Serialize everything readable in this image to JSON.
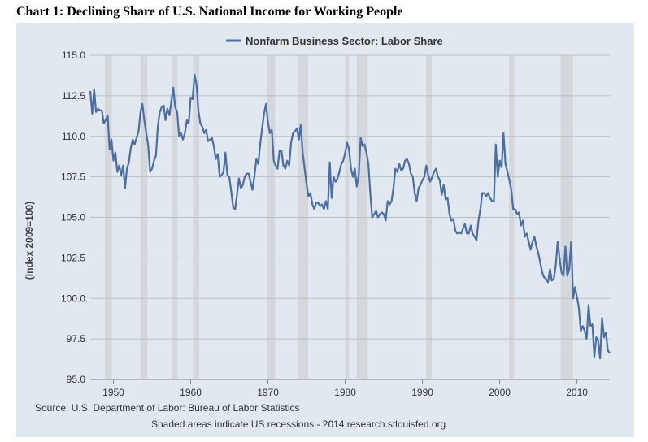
{
  "page": {
    "heading": "Chart 1: Declining Share of U.S. National Income for Working People"
  },
  "chart_data": {
    "type": "line",
    "title": "",
    "legend": {
      "position": "top-center",
      "entries": [
        "Nonfarm Business Sector: Labor Share"
      ]
    },
    "xlabel": "",
    "ylabel": "(Index 2009=100)",
    "xlim": [
      1947.0,
      2014.25
    ],
    "ylim": [
      95.0,
      115.0
    ],
    "x_ticks": [
      "1950",
      "1960",
      "1970",
      "1980",
      "1990",
      "2000",
      "2010"
    ],
    "y_ticks": [
      "115.0",
      "112.5",
      "110.0",
      "107.5",
      "105.0",
      "102.5",
      "100.0",
      "97.5",
      "95.0"
    ],
    "grid": true,
    "source": "Source: U.S. Department of Labor: Bureau of Labor Statistics",
    "note": "Shaded areas indicate US recessions - 2014 research.stlouisfed.org",
    "recessions": [
      [
        1948.9,
        1949.8
      ],
      [
        1953.5,
        1954.4
      ],
      [
        1957.6,
        1958.3
      ],
      [
        1960.3,
        1961.1
      ],
      [
        1969.9,
        1970.9
      ],
      [
        1973.9,
        1975.2
      ],
      [
        1980.0,
        1980.5
      ],
      [
        1981.5,
        1982.9
      ],
      [
        1990.5,
        1991.2
      ],
      [
        2001.2,
        2001.9
      ],
      [
        2007.9,
        2009.5
      ]
    ],
    "series": [
      {
        "name": "Nonfarm Business Sector: Labor Share",
        "color": "#4b6fa3",
        "points": [
          [
            1947.0,
            112.8
          ],
          [
            1947.25,
            111.4
          ],
          [
            1947.5,
            112.9
          ],
          [
            1947.75,
            111.5
          ],
          [
            1948.0,
            111.7
          ],
          [
            1948.25,
            111.6
          ],
          [
            1948.5,
            111.6
          ],
          [
            1948.75,
            110.8
          ],
          [
            1949.0,
            111.0
          ],
          [
            1949.25,
            111.3
          ],
          [
            1949.5,
            109.2
          ],
          [
            1949.75,
            109.8
          ],
          [
            1950.0,
            108.5
          ],
          [
            1950.25,
            109.0
          ],
          [
            1950.5,
            107.8
          ],
          [
            1950.75,
            108.2
          ],
          [
            1951.0,
            107.6
          ],
          [
            1951.25,
            108.2
          ],
          [
            1951.5,
            106.8
          ],
          [
            1951.75,
            108.0
          ],
          [
            1952.0,
            108.4
          ],
          [
            1952.25,
            109.3
          ],
          [
            1952.5,
            109.8
          ],
          [
            1952.75,
            109.5
          ],
          [
            1953.0,
            109.9
          ],
          [
            1953.25,
            110.3
          ],
          [
            1953.5,
            111.5
          ],
          [
            1953.75,
            112.0
          ],
          [
            1954.0,
            111.0
          ],
          [
            1954.25,
            110.2
          ],
          [
            1954.5,
            109.4
          ],
          [
            1954.75,
            107.8
          ],
          [
            1955.0,
            108.0
          ],
          [
            1955.25,
            108.5
          ],
          [
            1955.5,
            108.8
          ],
          [
            1955.75,
            110.6
          ],
          [
            1956.0,
            111.5
          ],
          [
            1956.25,
            111.8
          ],
          [
            1956.5,
            111.9
          ],
          [
            1956.75,
            111.0
          ],
          [
            1957.0,
            111.7
          ],
          [
            1957.25,
            111.3
          ],
          [
            1957.5,
            112.2
          ],
          [
            1957.75,
            113.0
          ],
          [
            1958.0,
            111.8
          ],
          [
            1958.25,
            111.5
          ],
          [
            1958.5,
            110.0
          ],
          [
            1958.75,
            110.2
          ],
          [
            1959.0,
            109.8
          ],
          [
            1959.25,
            110.2
          ],
          [
            1959.5,
            111.0
          ],
          [
            1959.75,
            110.8
          ],
          [
            1960.0,
            112.4
          ],
          [
            1960.25,
            112.3
          ],
          [
            1960.5,
            113.8
          ],
          [
            1960.75,
            113.2
          ],
          [
            1961.0,
            111.6
          ],
          [
            1961.25,
            110.8
          ],
          [
            1961.5,
            110.6
          ],
          [
            1961.75,
            110.2
          ],
          [
            1962.0,
            110.4
          ],
          [
            1962.25,
            109.7
          ],
          [
            1962.5,
            109.8
          ],
          [
            1962.75,
            109.9
          ],
          [
            1963.0,
            109.4
          ],
          [
            1963.25,
            108.6
          ],
          [
            1963.5,
            108.9
          ],
          [
            1963.75,
            107.5
          ],
          [
            1964.0,
            107.6
          ],
          [
            1964.25,
            107.8
          ],
          [
            1964.5,
            109.0
          ],
          [
            1964.75,
            107.6
          ],
          [
            1965.0,
            107.5
          ],
          [
            1965.25,
            106.6
          ],
          [
            1965.5,
            105.6
          ],
          [
            1965.75,
            105.5
          ],
          [
            1966.0,
            106.4
          ],
          [
            1966.25,
            107.4
          ],
          [
            1966.5,
            106.8
          ],
          [
            1966.75,
            107.0
          ],
          [
            1967.0,
            107.5
          ],
          [
            1967.25,
            107.7
          ],
          [
            1967.5,
            107.7
          ],
          [
            1967.75,
            107.2
          ],
          [
            1968.0,
            106.7
          ],
          [
            1968.25,
            107.5
          ],
          [
            1968.5,
            108.6
          ],
          [
            1968.75,
            108.3
          ],
          [
            1969.0,
            109.5
          ],
          [
            1969.25,
            110.5
          ],
          [
            1969.5,
            111.4
          ],
          [
            1969.75,
            112.0
          ],
          [
            1970.0,
            110.9
          ],
          [
            1970.25,
            110.2
          ],
          [
            1970.5,
            110.4
          ],
          [
            1970.75,
            108.5
          ],
          [
            1971.0,
            108.2
          ],
          [
            1971.25,
            108.0
          ],
          [
            1971.5,
            109.1
          ],
          [
            1971.75,
            109.1
          ],
          [
            1972.0,
            108.2
          ],
          [
            1972.25,
            108.0
          ],
          [
            1972.5,
            108.5
          ],
          [
            1972.75,
            108.2
          ],
          [
            1973.0,
            109.6
          ],
          [
            1973.25,
            110.2
          ],
          [
            1973.5,
            110.3
          ],
          [
            1973.75,
            110.5
          ],
          [
            1974.0,
            109.8
          ],
          [
            1974.25,
            110.7
          ],
          [
            1974.5,
            109.0
          ],
          [
            1974.75,
            108.0
          ],
          [
            1975.0,
            107.0
          ],
          [
            1975.25,
            106.3
          ],
          [
            1975.5,
            106.5
          ],
          [
            1975.75,
            105.8
          ],
          [
            1976.0,
            105.5
          ],
          [
            1976.25,
            105.9
          ],
          [
            1976.5,
            105.9
          ],
          [
            1976.75,
            105.7
          ],
          [
            1977.0,
            105.8
          ],
          [
            1977.25,
            105.5
          ],
          [
            1977.5,
            106.0
          ],
          [
            1977.75,
            105.5
          ],
          [
            1978.0,
            108.4
          ],
          [
            1978.25,
            106.2
          ],
          [
            1978.5,
            107.5
          ],
          [
            1978.75,
            107.2
          ],
          [
            1979.0,
            107.4
          ],
          [
            1979.25,
            107.8
          ],
          [
            1979.5,
            108.3
          ],
          [
            1979.75,
            108.5
          ],
          [
            1980.0,
            109.0
          ],
          [
            1980.25,
            109.6
          ],
          [
            1980.5,
            109.2
          ],
          [
            1980.75,
            108.0
          ],
          [
            1981.0,
            107.5
          ],
          [
            1981.25,
            108.0
          ],
          [
            1981.5,
            106.9
          ],
          [
            1981.75,
            107.6
          ],
          [
            1982.0,
            109.9
          ],
          [
            1982.25,
            109.4
          ],
          [
            1982.5,
            109.5
          ],
          [
            1982.75,
            109.0
          ],
          [
            1983.0,
            108.3
          ],
          [
            1983.25,
            106.5
          ],
          [
            1983.5,
            105.0
          ],
          [
            1983.75,
            105.2
          ],
          [
            1984.0,
            105.4
          ],
          [
            1984.25,
            105.0
          ],
          [
            1984.5,
            105.2
          ],
          [
            1984.75,
            105.3
          ],
          [
            1985.0,
            105.2
          ],
          [
            1985.25,
            104.8
          ],
          [
            1985.5,
            106.0
          ],
          [
            1985.75,
            105.8
          ],
          [
            1986.0,
            106.0
          ],
          [
            1986.25,
            106.8
          ],
          [
            1986.5,
            108.0
          ],
          [
            1986.75,
            107.8
          ],
          [
            1987.0,
            108.3
          ],
          [
            1987.25,
            107.9
          ],
          [
            1987.5,
            108.0
          ],
          [
            1987.75,
            108.5
          ],
          [
            1988.0,
            108.6
          ],
          [
            1988.25,
            108.3
          ],
          [
            1988.5,
            107.7
          ],
          [
            1988.75,
            107.5
          ],
          [
            1989.0,
            106.5
          ],
          [
            1989.25,
            106.0
          ],
          [
            1989.5,
            106.8
          ],
          [
            1989.75,
            107.0
          ],
          [
            1990.0,
            107.3
          ],
          [
            1990.25,
            107.5
          ],
          [
            1990.5,
            108.2
          ],
          [
            1990.75,
            107.6
          ],
          [
            1991.0,
            107.2
          ],
          [
            1991.25,
            107.5
          ],
          [
            1991.5,
            107.8
          ],
          [
            1991.75,
            108.0
          ],
          [
            1992.0,
            107.5
          ],
          [
            1992.25,
            107.3
          ],
          [
            1992.5,
            106.4
          ],
          [
            1992.75,
            107.0
          ],
          [
            1993.0,
            106.1
          ],
          [
            1993.25,
            106.2
          ],
          [
            1993.5,
            105.2
          ],
          [
            1993.75,
            104.8
          ],
          [
            1994.0,
            104.9
          ],
          [
            1994.25,
            104.2
          ],
          [
            1994.5,
            104.0
          ],
          [
            1994.75,
            104.1
          ],
          [
            1995.0,
            104.0
          ],
          [
            1995.25,
            104.3
          ],
          [
            1995.5,
            104.6
          ],
          [
            1995.75,
            104.0
          ],
          [
            1996.0,
            104.0
          ],
          [
            1996.25,
            104.5
          ],
          [
            1996.5,
            104.0
          ],
          [
            1996.75,
            103.8
          ],
          [
            1997.0,
            103.6
          ],
          [
            1997.25,
            104.8
          ],
          [
            1997.5,
            105.5
          ],
          [
            1997.75,
            106.5
          ],
          [
            1998.0,
            106.5
          ],
          [
            1998.25,
            106.3
          ],
          [
            1998.5,
            106.5
          ],
          [
            1998.75,
            106.2
          ],
          [
            1999.0,
            106.0
          ],
          [
            1999.25,
            106.0
          ],
          [
            1999.5,
            109.5
          ],
          [
            1999.75,
            107.5
          ],
          [
            2000.0,
            108.5
          ],
          [
            2000.25,
            108.1
          ],
          [
            2000.5,
            110.2
          ],
          [
            2000.75,
            108.3
          ],
          [
            2001.0,
            107.8
          ],
          [
            2001.25,
            107.3
          ],
          [
            2001.5,
            106.7
          ],
          [
            2001.75,
            105.5
          ],
          [
            2002.0,
            105.5
          ],
          [
            2002.25,
            105.2
          ],
          [
            2002.5,
            105.3
          ],
          [
            2002.75,
            104.5
          ],
          [
            2003.0,
            104.8
          ],
          [
            2003.25,
            103.8
          ],
          [
            2003.5,
            104.0
          ],
          [
            2003.75,
            103.5
          ],
          [
            2004.0,
            103.0
          ],
          [
            2004.25,
            103.5
          ],
          [
            2004.5,
            103.8
          ],
          [
            2004.75,
            103.2
          ],
          [
            2005.0,
            102.8
          ],
          [
            2005.25,
            102.2
          ],
          [
            2005.5,
            101.6
          ],
          [
            2005.75,
            101.3
          ],
          [
            2006.0,
            101.2
          ],
          [
            2006.25,
            101.0
          ],
          [
            2006.5,
            101.8
          ],
          [
            2006.75,
            101.1
          ],
          [
            2007.0,
            101.2
          ],
          [
            2007.25,
            102.0
          ],
          [
            2007.5,
            103.5
          ],
          [
            2007.75,
            102.5
          ],
          [
            2008.0,
            101.6
          ],
          [
            2008.25,
            101.4
          ],
          [
            2008.5,
            103.2
          ],
          [
            2008.75,
            101.4
          ],
          [
            2009.0,
            101.8
          ],
          [
            2009.25,
            103.5
          ],
          [
            2009.5,
            100.0
          ],
          [
            2009.75,
            100.7
          ],
          [
            2010.0,
            100.1
          ],
          [
            2010.25,
            99.4
          ],
          [
            2010.5,
            98.0
          ],
          [
            2010.75,
            98.3
          ],
          [
            2011.0,
            98.0
          ],
          [
            2011.25,
            97.5
          ],
          [
            2011.5,
            99.6
          ],
          [
            2011.75,
            98.3
          ],
          [
            2012.0,
            98.4
          ],
          [
            2012.25,
            96.4
          ],
          [
            2012.5,
            97.6
          ],
          [
            2012.75,
            97.4
          ],
          [
            2013.0,
            96.3
          ],
          [
            2013.25,
            98.8
          ],
          [
            2013.5,
            97.6
          ],
          [
            2013.75,
            97.9
          ],
          [
            2014.0,
            96.8
          ],
          [
            2014.25,
            96.6
          ]
        ]
      }
    ]
  }
}
